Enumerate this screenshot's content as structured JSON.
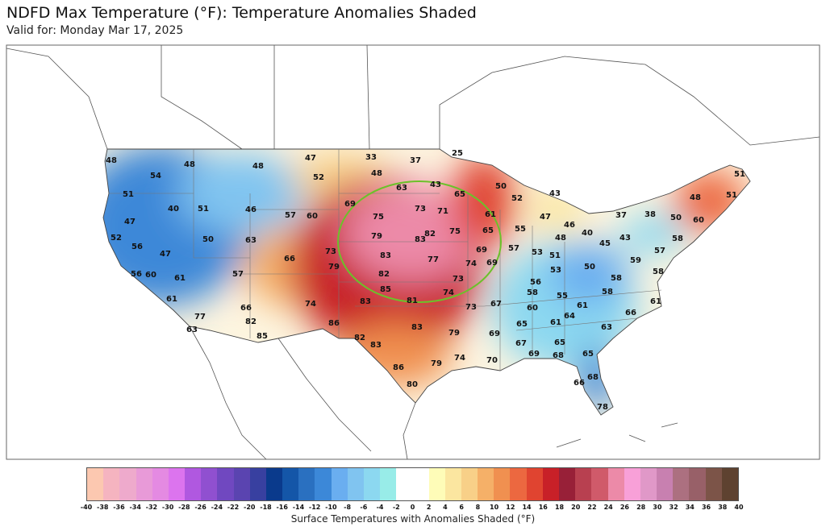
{
  "header": {
    "title": "NDFD Max Temperature (°F): Temperature Anomalies Shaded",
    "valid": "Valid for: Monday Mar 17, 2025"
  },
  "map": {
    "highlight_circle_color": "#6cc12a",
    "temperature_labels": [
      "48",
      "48",
      "54",
      "48",
      "47",
      "52",
      "51",
      "40",
      "51",
      "46",
      "57",
      "60",
      "69",
      "47",
      "52",
      "56",
      "50",
      "63",
      "47",
      "66",
      "73",
      "56",
      "60",
      "61",
      "57",
      "79",
      "61",
      "74",
      "66",
      "82",
      "77",
      "63",
      "86",
      "85",
      "33",
      "37",
      "25",
      "48",
      "43",
      "63",
      "65",
      "50",
      "73",
      "71",
      "75",
      "61",
      "79",
      "82",
      "83",
      "75",
      "65",
      "83",
      "77",
      "69",
      "74",
      "69",
      "82",
      "73",
      "85",
      "74",
      "83",
      "81",
      "73",
      "67",
      "83",
      "82",
      "79",
      "69",
      "83",
      "74",
      "70",
      "86",
      "79",
      "80",
      "52",
      "43",
      "51",
      "51",
      "48",
      "47",
      "46",
      "40",
      "55",
      "37",
      "38",
      "50",
      "60",
      "48",
      "43",
      "45",
      "58",
      "57",
      "53",
      "51",
      "57",
      "53",
      "50",
      "59",
      "58",
      "56",
      "58",
      "58",
      "55",
      "58",
      "61",
      "60",
      "61",
      "64",
      "66",
      "65",
      "61",
      "63",
      "67",
      "65",
      "65",
      "69",
      "68",
      "68",
      "66",
      "78"
    ]
  },
  "colorbar": {
    "label": "Surface Temperatures with Anomalies Shaded (°F)",
    "ticks": [
      "-40",
      "-38",
      "-36",
      "-34",
      "-32",
      "-30",
      "-28",
      "-26",
      "-24",
      "-22",
      "-20",
      "-18",
      "-16",
      "-14",
      "-12",
      "-10",
      "-8",
      "-6",
      "-4",
      "-2",
      "0",
      "2",
      "4",
      "6",
      "8",
      "10",
      "12",
      "14",
      "16",
      "18",
      "20",
      "22",
      "24",
      "26",
      "28",
      "30",
      "32",
      "34",
      "36",
      "38",
      "40"
    ],
    "colors": [
      "#fcc8b0",
      "#f5b4c0",
      "#eeaacc",
      "#e89ad8",
      "#e48ae2",
      "#dc74ee",
      "#b058e0",
      "#9050d0",
      "#7048c0",
      "#5a44b0",
      "#3840a0",
      "#0a3a8c",
      "#1456a8",
      "#2a70c0",
      "#3c88d8",
      "#6aaef0",
      "#80c4f0",
      "#8cd8f0",
      "#98ece8",
      "#ffffff",
      "#ffffff",
      "#fefcb8",
      "#fbe6a0",
      "#f8d088",
      "#f5b068",
      "#f09050",
      "#ec6840",
      "#e04430",
      "#c82028",
      "#982038",
      "#b84050",
      "#d05a6a",
      "#ec8aa8",
      "#f8a0d8",
      "#e098c8",
      "#c880b0",
      "#ac7080",
      "#986068",
      "#7c5448",
      "#5e4230"
    ]
  }
}
